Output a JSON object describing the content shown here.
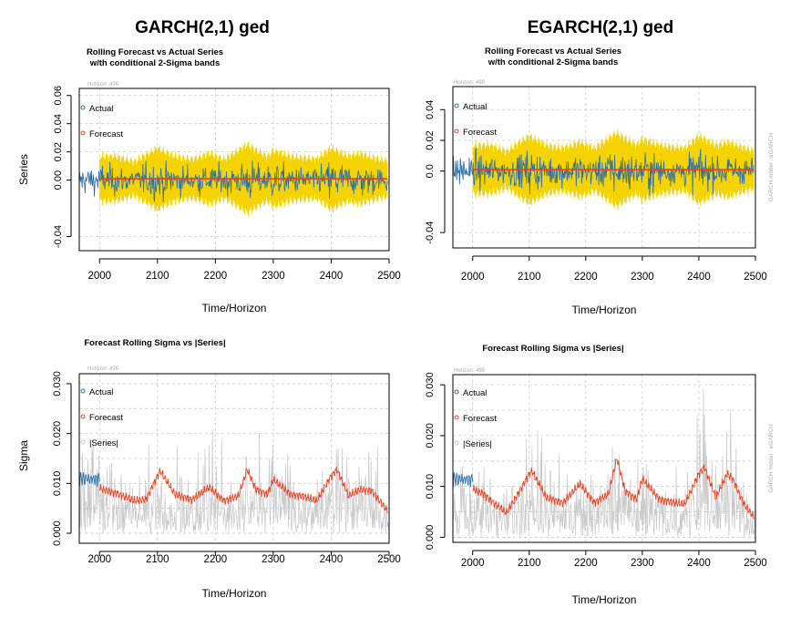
{
  "titles": {
    "left": "GARCH(2,1) ged",
    "right": "EGARCH(2,1) ged"
  },
  "horizon_note": "Horizon: 499",
  "model_notes": {
    "left": "",
    "right": "GARCH model : eGARCH"
  },
  "colors": {
    "actual": "#2E6FA7",
    "forecast": "#F04020",
    "band": "#F5D300",
    "series_gray": "#C8C8C8",
    "grid": "#C8C8C8"
  },
  "chart_data": [
    {
      "id": "left-series",
      "type": "line",
      "title": "Rolling Forecast vs Actual Series",
      "subtitle": "w/th conditional 2-Sigma bands",
      "xlabel": "Time/Horizon",
      "ylabel": "Series",
      "xlim": [
        1965,
        2500
      ],
      "ylim": [
        -0.05,
        0.065
      ],
      "xticks": [
        "2000",
        "2100",
        "2200",
        "2300",
        "2400",
        "2500"
      ],
      "yticks": [
        "-0.04",
        "0.00",
        "0.02",
        "0.04",
        "0.06"
      ],
      "ytick_values": [
        -0.04,
        0.0,
        0.02,
        0.04,
        0.06
      ],
      "legend": [
        "Actual",
        "Forecast"
      ],
      "series": [
        {
          "name": "Actual",
          "note": "blue trace for first ~35 obs, then plotted inside bands, amplitude ~0.02"
        },
        {
          "name": "Forecast",
          "value": 0.001
        },
        {
          "name": "2-Sigma band",
          "half_width_range": [
            0.012,
            0.03
          ]
        }
      ]
    },
    {
      "id": "right-series",
      "type": "line",
      "title": "Rolling Forecast vs Actual Series",
      "subtitle": "w/th conditional 2-Sigma bands",
      "xlabel": "Time/Horizon",
      "ylabel": "",
      "xlim": [
        1965,
        2500
      ],
      "ylim": [
        -0.05,
        0.055
      ],
      "xticks": [
        "2000",
        "2100",
        "2200",
        "2300",
        "2400",
        "2500"
      ],
      "yticks": [
        "-0.04",
        "0.0",
        "0.02",
        "0.04"
      ],
      "ytick_values": [
        -0.04,
        0.0,
        0.02,
        0.04
      ],
      "legend": [
        "Actual",
        "Forecast"
      ],
      "series": [
        {
          "name": "Actual"
        },
        {
          "name": "Forecast",
          "value": 0.001
        },
        {
          "name": "2-Sigma band",
          "half_width_range": [
            0.012,
            0.03
          ]
        }
      ]
    },
    {
      "id": "left-sigma",
      "type": "line",
      "title": "Forecast Rolling Sigma vs |Series|",
      "xlabel": "Time/Horizon",
      "ylabel": "Sigma",
      "xlim": [
        1965,
        2500
      ],
      "ylim": [
        -0.002,
        0.032
      ],
      "xticks": [
        "2000",
        "2100",
        "2200",
        "2300",
        "2400",
        "2500"
      ],
      "yticks": [
        "0.000",
        "0.010",
        "0.020",
        "0.030"
      ],
      "ytick_values": [
        0.0,
        0.01,
        0.02,
        0.03
      ],
      "legend": [
        "Actual",
        "Forecast",
        "|Series|"
      ],
      "sigma_x": [
        2000,
        2030,
        2060,
        2080,
        2100,
        2105,
        2130,
        2160,
        2190,
        2215,
        2240,
        2255,
        2270,
        2290,
        2300,
        2330,
        2350,
        2375,
        2400,
        2410,
        2430,
        2450,
        2470,
        2497
      ],
      "sigma_y": [
        0.009,
        0.008,
        0.0065,
        0.0068,
        0.0115,
        0.0125,
        0.0078,
        0.0068,
        0.0092,
        0.0065,
        0.0075,
        0.0128,
        0.0088,
        0.0078,
        0.0108,
        0.0078,
        0.0075,
        0.0065,
        0.0115,
        0.0128,
        0.0075,
        0.0088,
        0.0085,
        0.0045
      ]
    },
    {
      "id": "right-sigma",
      "type": "line",
      "title": "Forecast Rolling Sigma vs |Series|",
      "xlabel": "Time/Horizon",
      "ylabel": "",
      "xlim": [
        1965,
        2500
      ],
      "ylim": [
        -0.001,
        0.032
      ],
      "xticks": [
        "2000",
        "2100",
        "2200",
        "2300",
        "2400",
        "2500"
      ],
      "yticks": [
        "0.000",
        "0.010",
        "0.020",
        "0.030"
      ],
      "ytick_values": [
        0.0,
        0.01,
        0.02,
        0.03
      ],
      "legend": [
        "Actual",
        "Forecast",
        "|Series|"
      ],
      "sigma_x": [
        2000,
        2020,
        2040,
        2060,
        2080,
        2100,
        2105,
        2130,
        2160,
        2190,
        2215,
        2240,
        2255,
        2270,
        2290,
        2300,
        2330,
        2350,
        2375,
        2400,
        2410,
        2430,
        2450,
        2460,
        2480,
        2497
      ],
      "sigma_y": [
        0.0095,
        0.0085,
        0.0065,
        0.0048,
        0.0085,
        0.0125,
        0.013,
        0.0078,
        0.0068,
        0.0105,
        0.0068,
        0.0085,
        0.0155,
        0.009,
        0.0075,
        0.0115,
        0.0075,
        0.007,
        0.0065,
        0.0125,
        0.0138,
        0.0078,
        0.0125,
        0.0115,
        0.0065,
        0.004
      ]
    }
  ]
}
